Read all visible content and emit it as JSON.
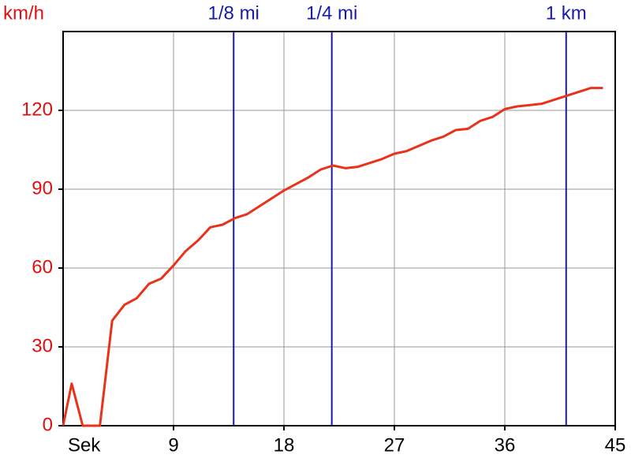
{
  "chart_data": {
    "type": "line",
    "y_label": "km/h",
    "x_label": "Sek",
    "x": [
      0,
      0.7,
      1.6,
      3,
      4,
      5,
      6,
      7,
      8,
      9,
      10,
      11,
      12,
      13,
      14,
      15,
      16,
      17,
      18,
      19,
      20,
      21,
      22,
      23,
      24,
      25,
      26,
      27,
      28,
      29,
      30,
      31,
      32,
      33,
      34,
      35,
      36,
      37,
      38,
      39,
      40,
      41,
      42,
      43,
      44
    ],
    "values": [
      0,
      16,
      0,
      0,
      40,
      46,
      48.5,
      54,
      56,
      61,
      66.5,
      70.5,
      75.5,
      76.5,
      79,
      80.5,
      83.5,
      86.5,
      89.5,
      92,
      94.5,
      97.5,
      99,
      98,
      98.5,
      100,
      101.5,
      103.5,
      104.5,
      106.5,
      108.5,
      110,
      112.5,
      113,
      116,
      117.5,
      120.5,
      121.5,
      122,
      122.5,
      124,
      125.5,
      127,
      128.5,
      128.5
    ],
    "color": "#e8321a",
    "xlim": [
      0,
      45
    ],
    "xticks": [
      9,
      18,
      27,
      36,
      45
    ],
    "ylim": [
      0,
      150
    ],
    "yticks": [
      0,
      30,
      60,
      90,
      120
    ],
    "grid": true,
    "markers": [
      {
        "x": 13.9,
        "label": "1/8 mi"
      },
      {
        "x": 21.9,
        "label": "1/4 mi"
      },
      {
        "x": 41,
        "label": "1 km"
      }
    ],
    "marker_color": "#1a1aaa",
    "label_color": "#dd1111"
  }
}
